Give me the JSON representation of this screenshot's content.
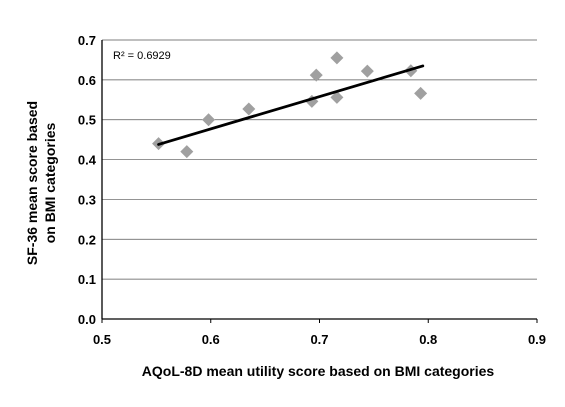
{
  "chart_data": {
    "type": "scatter",
    "title": "",
    "xlabel": "AQoL-8D mean utility score based on BMI categories",
    "ylabel_lines": [
      "SF-36 mean score based",
      "on BMI categories"
    ],
    "xlim": [
      0.5,
      0.9
    ],
    "ylim": [
      0.0,
      0.7
    ],
    "x_ticks": [
      "0.5",
      "0.6",
      "0.7",
      "0.8",
      "0.9"
    ],
    "y_ticks": [
      "0.0",
      "0.1",
      "0.2",
      "0.3",
      "0.4",
      "0.5",
      "0.6",
      "0.7"
    ],
    "grid": "horizontal",
    "marker_color": "#a0a0a0",
    "points": [
      {
        "x": 0.552,
        "y": 0.44
      },
      {
        "x": 0.578,
        "y": 0.42
      },
      {
        "x": 0.598,
        "y": 0.5
      },
      {
        "x": 0.635,
        "y": 0.527
      },
      {
        "x": 0.693,
        "y": 0.546
      },
      {
        "x": 0.697,
        "y": 0.612
      },
      {
        "x": 0.716,
        "y": 0.655
      },
      {
        "x": 0.716,
        "y": 0.556
      },
      {
        "x": 0.744,
        "y": 0.622
      },
      {
        "x": 0.784,
        "y": 0.623
      },
      {
        "x": 0.793,
        "y": 0.566
      }
    ],
    "trendline": {
      "x": [
        0.552,
        0.795
      ],
      "y": [
        0.438,
        0.635
      ],
      "color": "#000000"
    },
    "annotation": "R² = 0.6929"
  }
}
